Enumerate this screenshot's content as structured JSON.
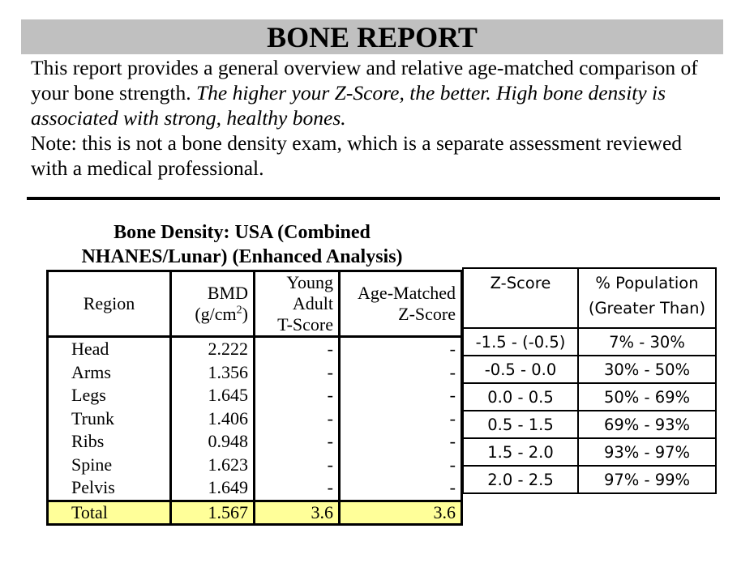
{
  "report": {
    "title": "BONE REPORT",
    "intro_line1_plain": "This report provides a general overview and relative age-matched comparison of your bone strength.  ",
    "intro_line1_italic": "The higher your Z-Score, the better.  High bone density is associated with strong, healthy bones.",
    "note": "Note: this is not a bone density exam, which is a separate assessment reviewed with a medical professional."
  },
  "bmd_table": {
    "caption_line1": "Bone Density: USA (Combined",
    "caption_line2": "NHANES/Lunar) (Enhanced Analysis)",
    "headers": {
      "region": "Region",
      "bmd_line1": "BMD",
      "bmd_line2_prefix": "(g/cm",
      "bmd_line2_sup": "2",
      "bmd_line2_suffix": ")",
      "tscore_line1": "Young",
      "tscore_line2": "Adult",
      "tscore_line3": "T-Score",
      "zscore_line1": "Age-Matched",
      "zscore_line2": "Z-Score"
    },
    "rows": [
      {
        "region": "Head",
        "bmd": "2.222",
        "t_score": "-",
        "z_score": "-"
      },
      {
        "region": "Arms",
        "bmd": "1.356",
        "t_score": "-",
        "z_score": "-"
      },
      {
        "region": "Legs",
        "bmd": "1.645",
        "t_score": "-",
        "z_score": "-"
      },
      {
        "region": "Trunk",
        "bmd": "1.406",
        "t_score": "-",
        "z_score": "-"
      },
      {
        "region": "Ribs",
        "bmd": "0.948",
        "t_score": "-",
        "z_score": "-"
      },
      {
        "region": "Spine",
        "bmd": "1.623",
        "t_score": "-",
        "z_score": "-"
      },
      {
        "region": "Pelvis",
        "bmd": "1.649",
        "t_score": "-",
        "z_score": "-"
      }
    ],
    "total": {
      "region": "Total",
      "bmd": "1.567",
      "t_score": "3.6",
      "z_score": "3.6"
    },
    "highlight_color": "#ffff99"
  },
  "zscore_reference": {
    "headers": {
      "zscore": "Z-Score",
      "population_line1": "% Population",
      "population_line2": "(Greater Than)"
    },
    "rows": [
      {
        "z_range": "-1.5 - (-0.5)",
        "population": "7% - 30%"
      },
      {
        "z_range": "-0.5 - 0.0",
        "population": "30% - 50%"
      },
      {
        "z_range": "0.0 - 0.5",
        "population": "50% - 69%"
      },
      {
        "z_range": "0.5 - 1.5",
        "population": "69% - 93%"
      },
      {
        "z_range": "1.5 - 2.0",
        "population": "93% - 97%"
      },
      {
        "z_range": "2.0 - 2.5",
        "population": "97% - 99%"
      }
    ]
  },
  "colors": {
    "title_band": "#c0c0c0",
    "total_row": "#ffff99",
    "text": "#000000"
  }
}
